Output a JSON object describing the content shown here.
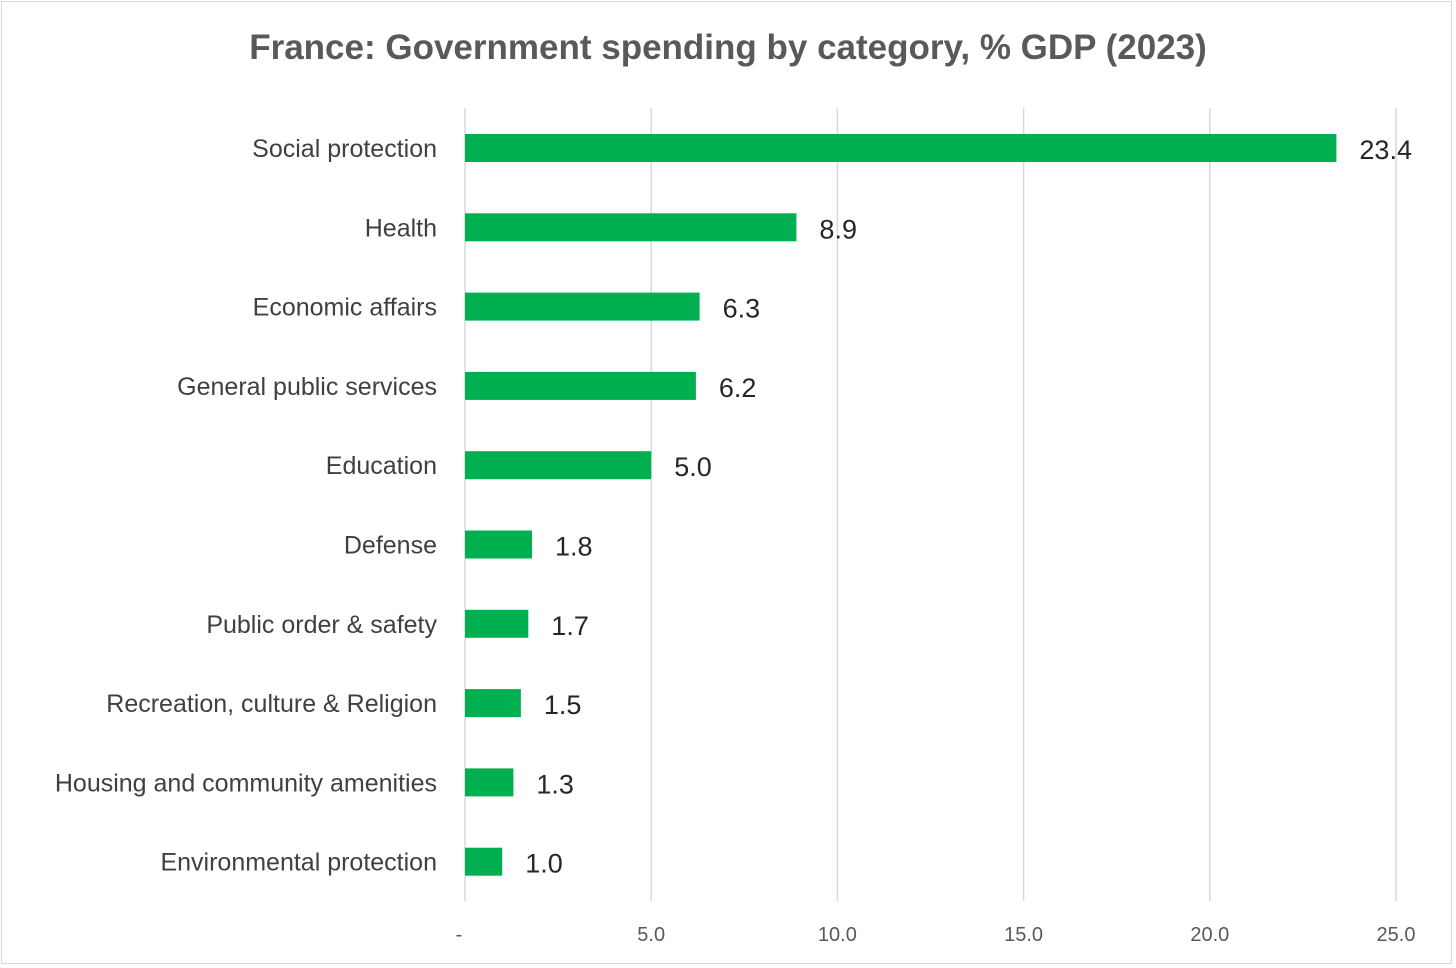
{
  "chart_data": {
    "type": "bar",
    "orientation": "horizontal",
    "title": "France: Government spending by category, % GDP (2023)",
    "categories": [
      "Social protection",
      "Health",
      "Economic affairs",
      "General public services",
      "Education",
      "Defense",
      "Public order & safety",
      "Recreation, culture & Religion",
      "Housing and community amenities",
      "Environmental protection"
    ],
    "values": [
      23.4,
      8.9,
      6.3,
      6.2,
      5.0,
      1.8,
      1.7,
      1.5,
      1.3,
      1.0
    ],
    "value_labels": [
      "23.4",
      "8.9",
      "6.3",
      "6.2",
      "5.0",
      "1.8",
      "1.7",
      "1.5",
      "1.3",
      "1.0"
    ],
    "xlim": [
      0,
      25
    ],
    "xticks": [
      0,
      5,
      10,
      15,
      20,
      25
    ],
    "xtick_labels": [
      "-",
      "5.0",
      "10.0",
      "15.0",
      "20.0",
      "25.0"
    ],
    "xlabel": "",
    "ylabel": "",
    "grid": true,
    "legend": "none",
    "bar_color": "#00b050"
  }
}
